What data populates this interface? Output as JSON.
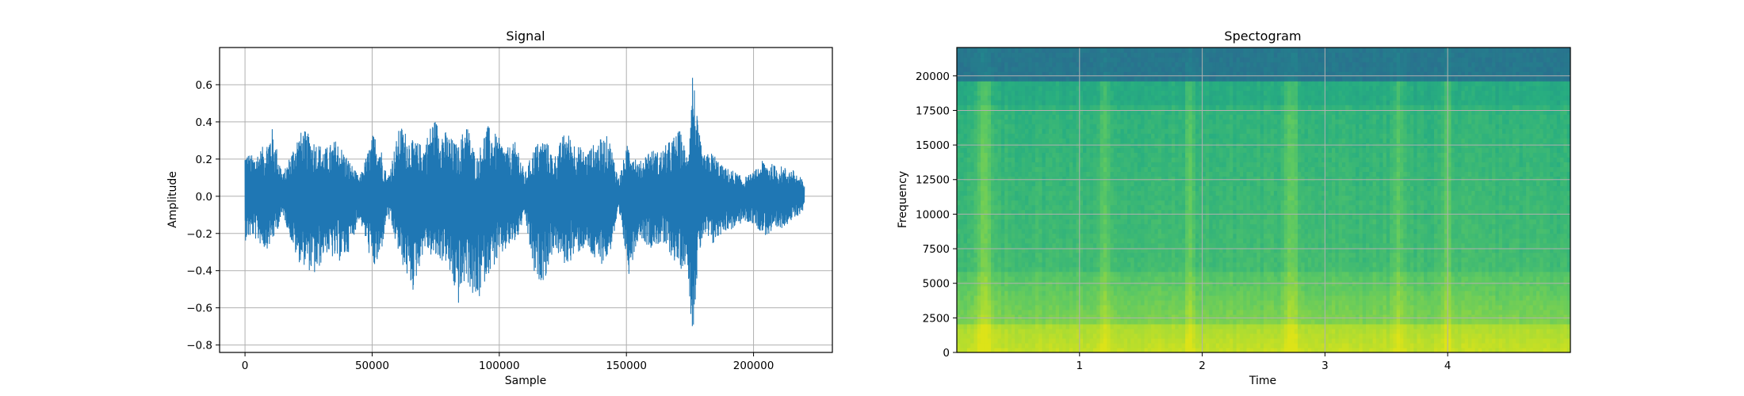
{
  "chart_data": [
    {
      "type": "line",
      "title": "Signal",
      "xlabel": "Sample",
      "ylabel": "Amplitude",
      "xlim": [
        -10000,
        231000
      ],
      "ylim": [
        -0.84,
        0.8
      ],
      "xticks": [
        0,
        50000,
        100000,
        150000,
        200000
      ],
      "xtick_labels": [
        "0",
        "50000",
        "100000",
        "150000",
        "200000"
      ],
      "yticks": [
        -0.8,
        -0.6,
        -0.4,
        -0.2,
        0.0,
        0.2,
        0.4,
        0.6
      ],
      "ytick_labels": [
        "−0.8",
        "−0.6",
        "−0.4",
        "−0.2",
        "0.0",
        "0.2",
        "0.4",
        "0.6"
      ],
      "grid": true,
      "color": "#1f77b4",
      "series": [
        {
          "x": [
            0,
            3000,
            8000,
            10500,
            15000,
            20500,
            23000,
            28000,
            31500,
            36000,
            40000,
            45000,
            50500,
            53000,
            56000,
            61000,
            66000,
            70500,
            74000,
            79000,
            84000,
            87000,
            91000,
            95000,
            99000,
            103000,
            107000,
            110000,
            114000,
            118000,
            121500,
            126000,
            130000,
            134000,
            138500,
            143000,
            147000,
            151000,
            155000,
            159000,
            163000,
            167000,
            171000,
            174000,
            176000,
            178000,
            180000,
            184000,
            188000,
            192000,
            196000,
            200000,
            204000,
            208000,
            212000,
            216000,
            220000
          ],
          "upper": [
            0.25,
            0.22,
            0.28,
            0.38,
            0.12,
            0.33,
            0.36,
            0.3,
            0.26,
            0.31,
            0.22,
            0.1,
            0.34,
            0.3,
            0.1,
            0.39,
            0.3,
            0.28,
            0.43,
            0.35,
            0.27,
            0.42,
            0.2,
            0.39,
            0.33,
            0.26,
            0.3,
            0.12,
            0.28,
            0.32,
            0.21,
            0.36,
            0.29,
            0.24,
            0.3,
            0.33,
            0.1,
            0.31,
            0.18,
            0.26,
            0.24,
            0.3,
            0.36,
            0.22,
            0.72,
            0.4,
            0.22,
            0.24,
            0.16,
            0.14,
            0.1,
            0.13,
            0.2,
            0.17,
            0.16,
            0.14,
            0.08
          ],
          "lower": [
            -0.24,
            -0.22,
            -0.29,
            -0.26,
            -0.1,
            -0.35,
            -0.37,
            -0.44,
            -0.3,
            -0.36,
            -0.33,
            -0.12,
            -0.4,
            -0.36,
            -0.1,
            -0.34,
            -0.52,
            -0.28,
            -0.34,
            -0.36,
            -0.59,
            -0.44,
            -0.61,
            -0.43,
            -0.36,
            -0.29,
            -0.24,
            -0.11,
            -0.46,
            -0.45,
            -0.28,
            -0.38,
            -0.32,
            -0.28,
            -0.38,
            -0.34,
            -0.1,
            -0.42,
            -0.21,
            -0.28,
            -0.26,
            -0.31,
            -0.4,
            -0.36,
            -0.77,
            -0.4,
            -0.22,
            -0.27,
            -0.19,
            -0.18,
            -0.14,
            -0.15,
            -0.21,
            -0.22,
            -0.16,
            -0.13,
            -0.07
          ]
        }
      ]
    },
    {
      "type": "heatmap",
      "title": "Spectogram",
      "xlabel": "Time",
      "ylabel": "Frequency",
      "xlim": [
        0,
        5.0
      ],
      "ylim": [
        0,
        22050
      ],
      "xticks": [
        1,
        2,
        3,
        4
      ],
      "xtick_labels": [
        "1",
        "2",
        "3",
        "4"
      ],
      "yticks": [
        0,
        2500,
        5000,
        7500,
        10000,
        12500,
        15000,
        17500,
        20000
      ],
      "ytick_labels": [
        "0",
        "2500",
        "5000",
        "7500",
        "10000",
        "12500",
        "15000",
        "17500",
        "20000"
      ],
      "grid": true,
      "colormap": [
        "#2b6c8e",
        "#1f908c",
        "#28ae80",
        "#5ec962",
        "#a5db36",
        "#dde318"
      ],
      "bright_times": [
        0.2,
        0.25,
        1.2,
        1.9,
        2.7,
        2.75,
        3.6,
        4.0
      ]
    }
  ]
}
